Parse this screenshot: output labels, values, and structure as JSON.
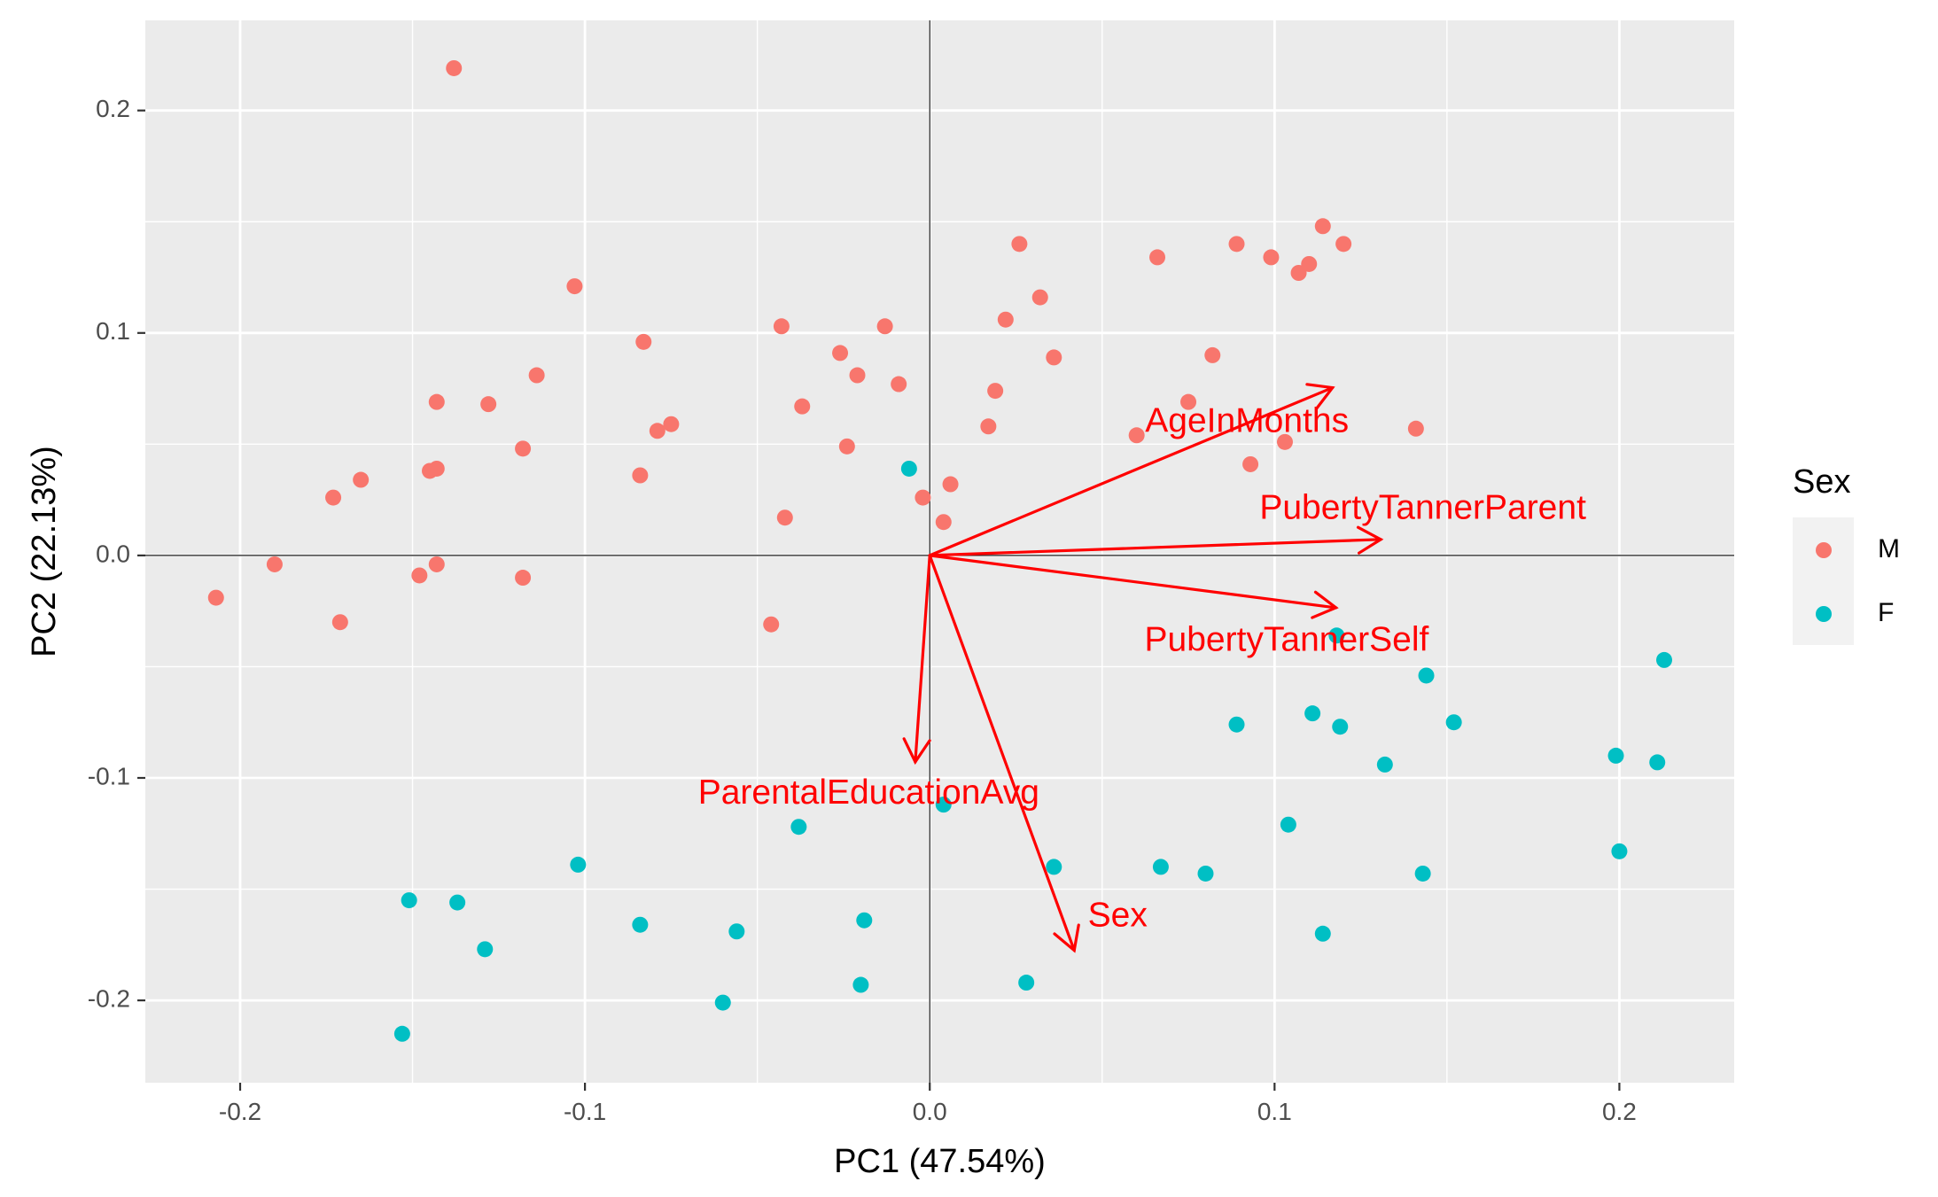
{
  "chart_data": {
    "type": "scatter",
    "title": "",
    "xlabel": "PC1 (47.54%)",
    "ylabel": "PC2 (22.13%)",
    "xlim": [
      -0.2275,
      0.2333
    ],
    "ylim": [
      -0.237,
      0.2405
    ],
    "x_ticks": [
      -0.2,
      -0.1,
      0.0,
      0.1,
      0.2
    ],
    "x_tick_labels": [
      "-0.2",
      "-0.1",
      "0.0",
      "0.1",
      "0.2"
    ],
    "y_ticks": [
      -0.2,
      -0.1,
      0.0,
      0.1,
      0.2
    ],
    "y_tick_labels": [
      "-0.2",
      "-0.1",
      "0.0",
      "0.1",
      "0.2"
    ],
    "grid": true,
    "panel_background": "#ebebeb",
    "legend": {
      "title": "Sex",
      "position": "right",
      "entries": [
        {
          "label": "M",
          "color": "#f8766d"
        },
        {
          "label": "F",
          "color": "#00bfc4"
        }
      ]
    },
    "series": [
      {
        "name": "M",
        "color": "#f8766d",
        "points": [
          [
            -0.138,
            0.219
          ],
          [
            -0.103,
            0.121
          ],
          [
            -0.083,
            0.096
          ],
          [
            -0.114,
            0.081
          ],
          [
            -0.143,
            0.069
          ],
          [
            -0.128,
            0.068
          ],
          [
            -0.118,
            0.048
          ],
          [
            -0.075,
            0.059
          ],
          [
            -0.079,
            0.056
          ],
          [
            -0.143,
            0.039
          ],
          [
            -0.145,
            0.038
          ],
          [
            -0.165,
            0.034
          ],
          [
            -0.173,
            0.026
          ],
          [
            -0.084,
            0.036
          ],
          [
            -0.143,
            -0.004
          ],
          [
            -0.19,
            -0.004
          ],
          [
            -0.148,
            -0.009
          ],
          [
            -0.118,
            -0.01
          ],
          [
            -0.207,
            -0.019
          ],
          [
            -0.171,
            -0.03
          ],
          [
            -0.043,
            0.103
          ],
          [
            -0.026,
            0.091
          ],
          [
            -0.021,
            0.081
          ],
          [
            -0.037,
            0.067
          ],
          [
            -0.024,
            0.049
          ],
          [
            -0.013,
            0.103
          ],
          [
            -0.009,
            0.077
          ],
          [
            -0.042,
            0.017
          ],
          [
            -0.046,
            -0.031
          ],
          [
            -0.002,
            0.026
          ],
          [
            0.004,
            0.015
          ],
          [
            0.006,
            0.032
          ],
          [
            0.026,
            0.14
          ],
          [
            0.032,
            0.116
          ],
          [
            0.022,
            0.106
          ],
          [
            0.036,
            0.089
          ],
          [
            0.019,
            0.074
          ],
          [
            0.017,
            0.058
          ],
          [
            0.06,
            0.054
          ],
          [
            0.066,
            0.134
          ],
          [
            0.075,
            0.069
          ],
          [
            0.082,
            0.09
          ],
          [
            0.089,
            0.14
          ],
          [
            0.093,
            0.041
          ],
          [
            0.099,
            0.134
          ],
          [
            0.103,
            0.051
          ],
          [
            0.107,
            0.127
          ],
          [
            0.11,
            0.131
          ],
          [
            0.114,
            0.148
          ],
          [
            0.12,
            0.14
          ],
          [
            0.141,
            0.057
          ]
        ]
      },
      {
        "name": "F",
        "color": "#00bfc4",
        "points": [
          [
            -0.006,
            0.039
          ],
          [
            0.118,
            -0.036
          ],
          [
            0.144,
            -0.054
          ],
          [
            0.213,
            -0.047
          ],
          [
            0.089,
            -0.076
          ],
          [
            0.111,
            -0.071
          ],
          [
            0.119,
            -0.077
          ],
          [
            0.152,
            -0.075
          ],
          [
            0.132,
            -0.094
          ],
          [
            0.199,
            -0.09
          ],
          [
            0.211,
            -0.093
          ],
          [
            0.004,
            -0.112
          ],
          [
            -0.038,
            -0.122
          ],
          [
            0.104,
            -0.121
          ],
          [
            0.2,
            -0.133
          ],
          [
            -0.102,
            -0.139
          ],
          [
            0.036,
            -0.14
          ],
          [
            0.067,
            -0.14
          ],
          [
            0.08,
            -0.143
          ],
          [
            0.143,
            -0.143
          ],
          [
            -0.151,
            -0.155
          ],
          [
            -0.137,
            -0.156
          ],
          [
            -0.084,
            -0.166
          ],
          [
            -0.056,
            -0.169
          ],
          [
            -0.019,
            -0.164
          ],
          [
            0.114,
            -0.17
          ],
          [
            -0.129,
            -0.177
          ],
          [
            -0.02,
            -0.193
          ],
          [
            0.028,
            -0.192
          ],
          [
            -0.06,
            -0.201
          ],
          [
            -0.153,
            -0.215
          ]
        ]
      }
    ],
    "loadings": {
      "color": "#ff0000",
      "vectors": [
        {
          "label": "AgeInMonths",
          "x": 0.1168,
          "y": 0.0754,
          "label_x": 0.092,
          "label_y": 0.0597
        },
        {
          "label": "PubertyTannerParent",
          "x": 0.1308,
          "y": 0.0072,
          "label_x": 0.143,
          "label_y": 0.0205
        },
        {
          "label": "PubertyTannerSelf",
          "x": 0.1178,
          "y": -0.0235,
          "label_x": 0.1035,
          "label_y": -0.0388
        },
        {
          "label": "ParentalEducationAvg",
          "x": -0.0042,
          "y": -0.0928,
          "label_x": -0.0177,
          "label_y": -0.1075
        },
        {
          "label": "Sex",
          "x": 0.0419,
          "y": -0.1775,
          "label_x": 0.0545,
          "label_y": -0.1626
        }
      ]
    }
  }
}
